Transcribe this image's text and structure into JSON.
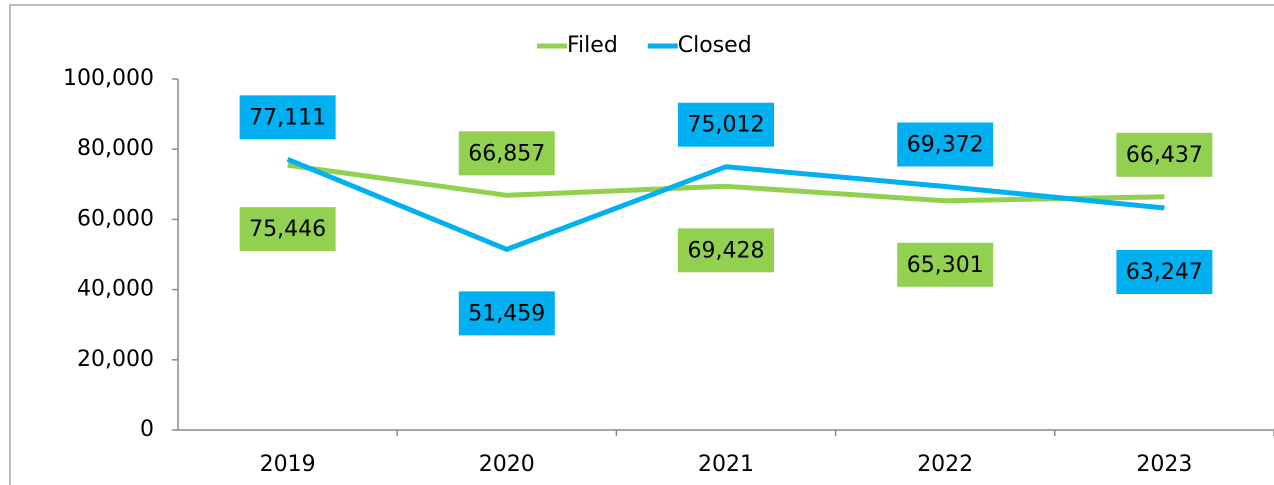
{
  "chart_data": {
    "type": "line",
    "categories": [
      "2019",
      "2020",
      "2021",
      "2022",
      "2023"
    ],
    "series": [
      {
        "name": "Filed",
        "color": "#92d050",
        "values": [
          75446,
          66857,
          69428,
          65301,
          66437
        ],
        "value_labels": [
          "75,446",
          "66,857",
          "69,428",
          "65,301",
          "66,437"
        ]
      },
      {
        "name": "Closed",
        "color": "#00b0f0",
        "values": [
          77111,
          51459,
          75012,
          69372,
          63247
        ],
        "value_labels": [
          "77,111",
          "51,459",
          "75,012",
          "69,372",
          "63,247"
        ]
      }
    ],
    "ylim": [
      0,
      100000
    ],
    "yticks": [
      0,
      {
        "value": 20000,
        "label": "20,000"
      },
      {
        "value": 40000,
        "label": "40,000"
      },
      {
        "value": 60000,
        "label": "60,000"
      },
      {
        "value": 80000,
        "label": "80,000"
      },
      {
        "value": 100000,
        "label": "100,000"
      }
    ],
    "legend": "top"
  }
}
